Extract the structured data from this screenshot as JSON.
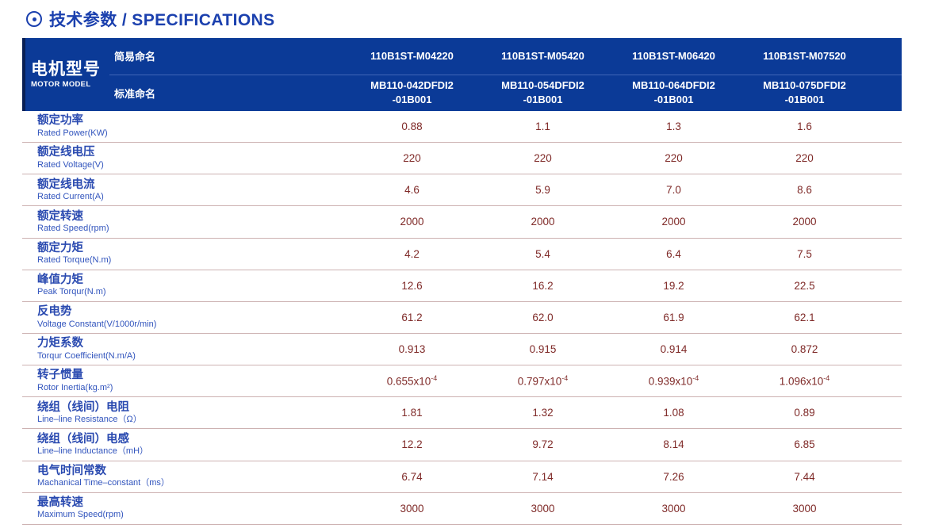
{
  "page": {
    "title": "技术参数 / SPECIFICATIONS"
  },
  "colors": {
    "title_blue": "#1b40ae",
    "header_bg": "#0b3a97",
    "header_left_stripe": "#081f55",
    "label_blue": "#2a4ab0",
    "value_maroon": "#7f2a28",
    "row_divider_pink": "#cdb2b2"
  },
  "table": {
    "motor_model_zh": "电机型号",
    "motor_model_en": "MOTOR MODEL",
    "simple_name_label": "简易命名",
    "standard_name_label": "标准命名",
    "models_simple": [
      "110B1ST-M04220",
      "110B1ST-M05420",
      "110B1ST-M06420",
      "110B1ST-M07520"
    ],
    "models_standard": [
      "MB110-042DFDI2\n-01B001",
      "MB110-054DFDI2\n-01B001",
      "MB110-064DFDI2\n-01B001",
      "MB110-075DFDI2\n-01B001"
    ],
    "rows": [
      {
        "zh": "额定功率",
        "en": "Rated Power(KW)",
        "values": [
          "0.88",
          "1.1",
          "1.3",
          "1.6"
        ]
      },
      {
        "zh": "额定线电压",
        "en": "Rated Voltage(V)",
        "values": [
          "220",
          "220",
          "220",
          "220"
        ]
      },
      {
        "zh": "额定线电流",
        "en": "Rated Current(A)",
        "values": [
          "4.6",
          "5.9",
          "7.0",
          "8.6"
        ]
      },
      {
        "zh": "额定转速",
        "en": "Rated Speed(rpm)",
        "values": [
          "2000",
          "2000",
          "2000",
          "2000"
        ]
      },
      {
        "zh": "额定力矩",
        "en": "Rated Torque(N.m)",
        "values": [
          "4.2",
          "5.4",
          "6.4",
          "7.5"
        ]
      },
      {
        "zh": "峰值力矩",
        "en": "Peak Torqur(N.m)",
        "values": [
          "12.6",
          "16.2",
          "19.2",
          "22.5"
        ]
      },
      {
        "zh": "反电势",
        "en": "Voltage Constant(V/1000r/min)",
        "values": [
          "61.2",
          "62.0",
          "61.9",
          "62.1"
        ]
      },
      {
        "zh": "力矩系数",
        "en": "Torqur Coefficient(N.m/A)",
        "values": [
          "0.913",
          "0.915",
          "0.914",
          "0.872"
        ]
      },
      {
        "zh": "转子惯量",
        "en": "Rotor Inertia(kg.m²)",
        "values": [
          "0.655x10^-4",
          "0.797x10^-4",
          "0.939x10^-4",
          "1.096x10^-4"
        ]
      },
      {
        "zh": "绕组（线间）电阻",
        "en": "Line–line Resistance（Ω）",
        "values": [
          "1.81",
          "1.32",
          "1.08",
          "0.89"
        ]
      },
      {
        "zh": "绕组（线间）电感",
        "en": "Line–line Inductance（mH）",
        "values": [
          "12.2",
          "9.72",
          "8.14",
          "6.85"
        ]
      },
      {
        "zh": "电气时间常数",
        "en": "Machanical Time–constant（ms）",
        "values": [
          "6.74",
          "7.14",
          "7.26",
          "7.44"
        ]
      },
      {
        "zh": "最高转速",
        "en": "Maximum Speed(rpm)",
        "values": [
          "3000",
          "3000",
          "3000",
          "3000"
        ]
      }
    ]
  }
}
